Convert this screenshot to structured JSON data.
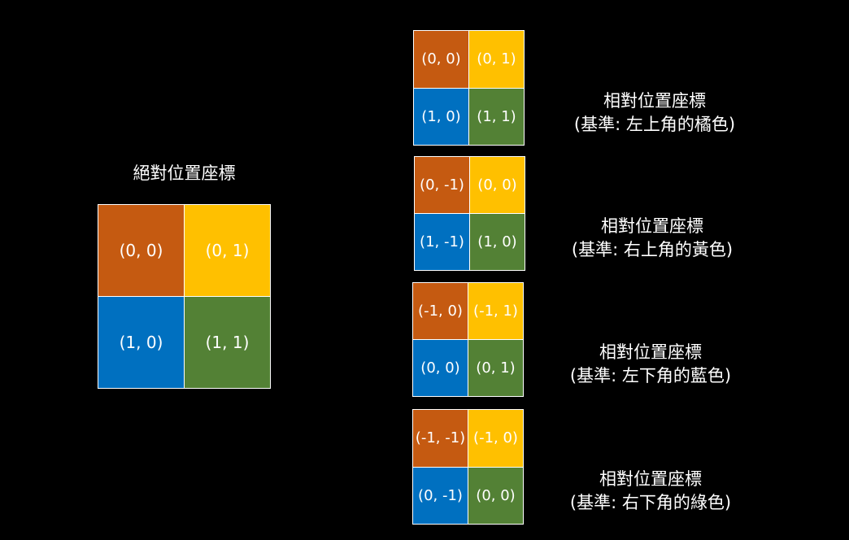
{
  "colors": {
    "orange": "#C55A11",
    "yellow": "#FFC000",
    "blue": "#0070C0",
    "green": "#538135",
    "background": "#000000",
    "text": "#FFFFFF"
  },
  "absolute": {
    "title": "絕對位置座標",
    "cells": [
      "(0, 0)",
      "(0, 1)",
      "(1, 0)",
      "(1, 1)"
    ]
  },
  "relative": [
    {
      "title": "相對位置座標",
      "subtitle": "(基準: 左上角的橘色)",
      "cells": [
        "(0, 0)",
        "(0, 1)",
        "(1, 0)",
        "(1, 1)"
      ]
    },
    {
      "title": "相對位置座標",
      "subtitle": "(基準: 右上角的黃色)",
      "cells": [
        "(0, -1)",
        "(0, 0)",
        "(1, -1)",
        "(1, 0)"
      ]
    },
    {
      "title": "相對位置座標",
      "subtitle": "(基準: 左下角的藍色)",
      "cells": [
        "(-1, 0)",
        "(-1, 1)",
        "(0, 0)",
        "(0, 1)"
      ]
    },
    {
      "title": "相對位置座標",
      "subtitle": "(基準: 右下角的綠色)",
      "cells": [
        "(-1, -1)",
        "(-1, 0)",
        "(0, -1)",
        "(0, 0)"
      ]
    }
  ]
}
